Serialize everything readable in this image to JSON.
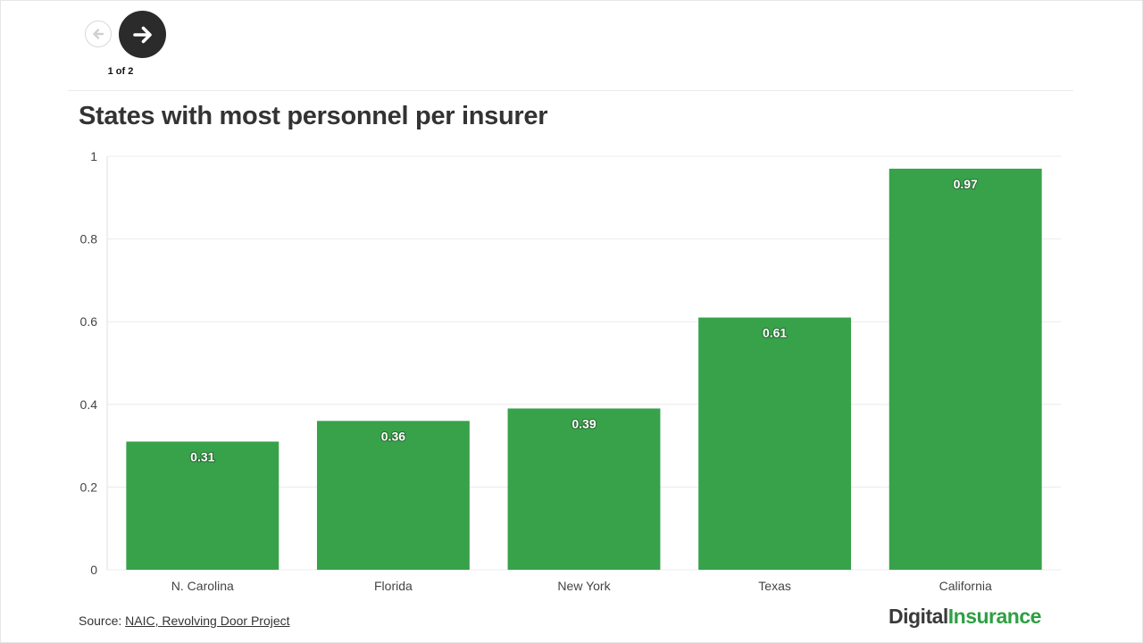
{
  "nav": {
    "prev_icon": "arrow-left-icon",
    "next_icon": "arrow-right-icon",
    "pager_text": "1 of 2"
  },
  "title": "States with most personnel per insurer",
  "source": {
    "label": "Source:",
    "link_text": "NAIC, Revolving Door Project"
  },
  "logo": {
    "part1": "Digital",
    "part2": "Insurance"
  },
  "colors": {
    "bar": "#37a24a",
    "grid": "#ececec",
    "axis_text": "#444444",
    "brand_green": "#2ea043"
  },
  "chart_data": {
    "type": "bar",
    "categories": [
      "N. Carolina",
      "Florida",
      "New York",
      "Texas",
      "California"
    ],
    "values": [
      0.31,
      0.36,
      0.39,
      0.61,
      0.97
    ],
    "value_labels": [
      "0.31",
      "0.36",
      "0.39",
      "0.61",
      "0.97"
    ],
    "title": "States with most personnel per insurer",
    "xlabel": "",
    "ylabel": "",
    "ylim": [
      0,
      1
    ],
    "yticks": [
      0,
      0.2,
      0.4,
      0.6,
      0.8,
      1
    ],
    "ytick_labels": [
      "0",
      "0.2",
      "0.4",
      "0.6",
      "0.8",
      "1"
    ],
    "grid": true,
    "legend": "none"
  }
}
